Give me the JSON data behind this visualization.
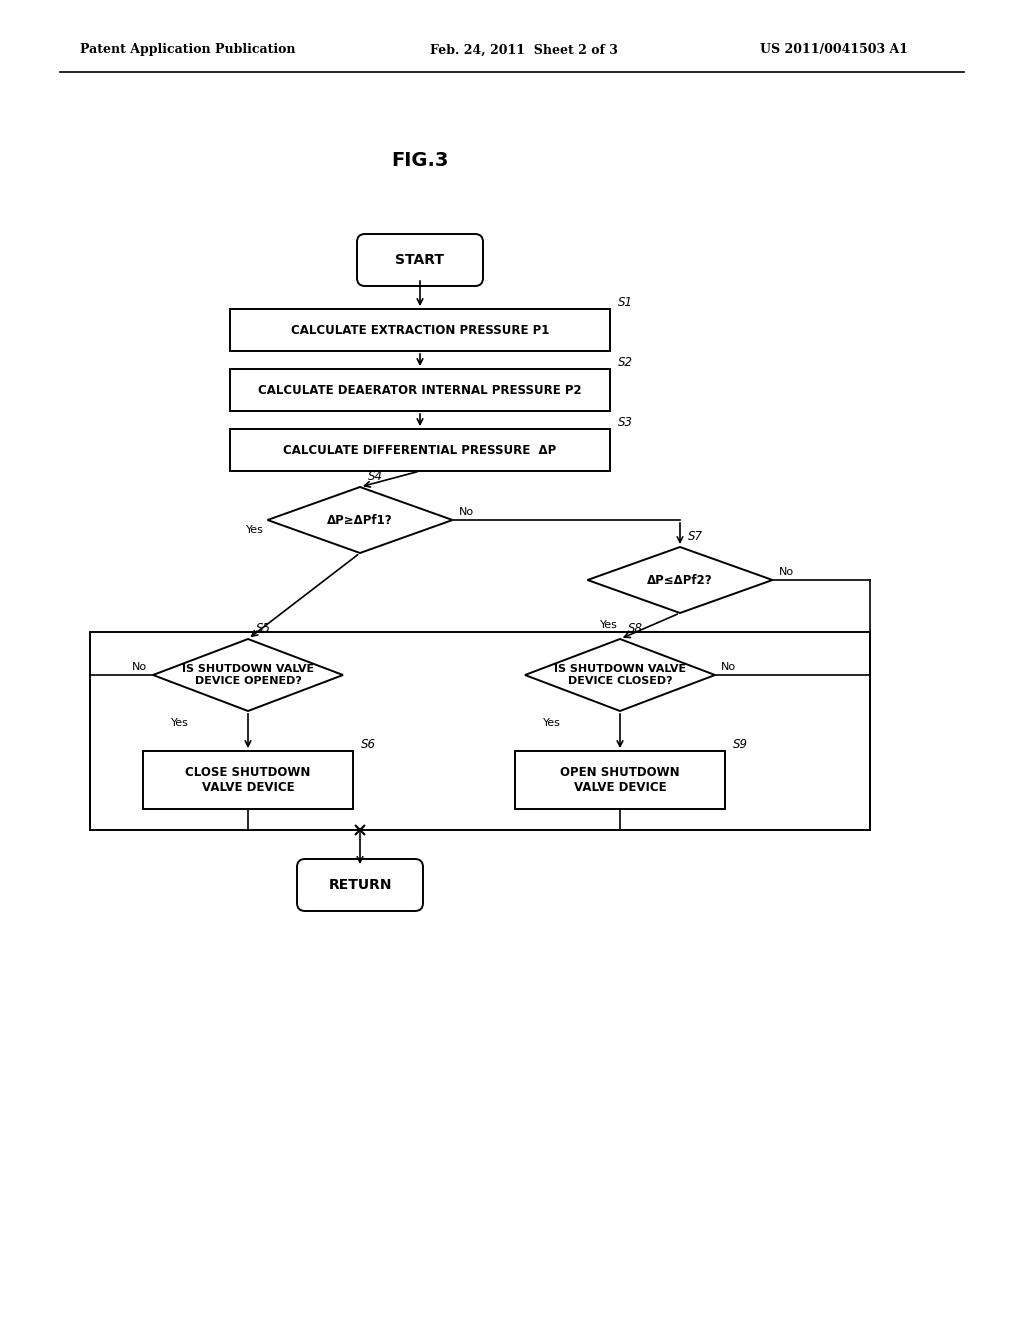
{
  "bg_color": "#ffffff",
  "header_left": "Patent Application Publication",
  "header_mid": "Feb. 24, 2011  Sheet 2 of 3",
  "header_right": "US 2011/0041503 A1",
  "fig_title": "FIG.3",
  "start_text": "START",
  "return_text": "RETURN",
  "s1_text": "CALCULATE EXTRACTION PRESSURE P1",
  "s2_text": "CALCULATE DEAERATOR INTERNAL PRESSURE P2",
  "s3_text": "CALCULATE DIFFERENTIAL PRESSURE  ΔP",
  "s4_text": "ΔP≥ΔPf1?",
  "s7_text": "ΔP≤ΔPf2?",
  "s5_text": "IS SHUTDOWN VALVE\nDEVICE OPENED?",
  "s8_text": "IS SHUTDOWN VALVE\nDEVICE CLOSED?",
  "s6_text": "CLOSE SHUTDOWN\nVALVE DEVICE",
  "s9_text": "OPEN SHUTDOWN\nVALVE DEVICE"
}
